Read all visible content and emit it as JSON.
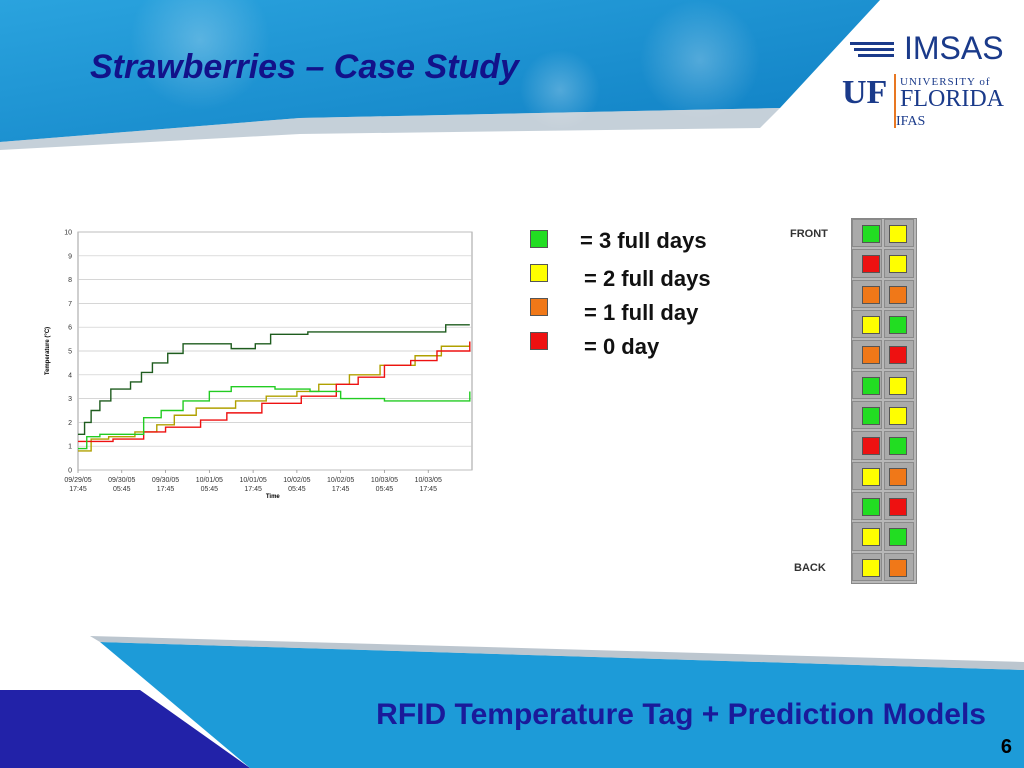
{
  "slide": {
    "title": "Strawberries – Case Study",
    "footer_title": "RFID Temperature Tag + Prediction Models",
    "page_number": "6"
  },
  "logo": {
    "imsas": "IMSAS",
    "uf": "UF",
    "university_of": "UNIVERSITY of",
    "florida": "FLORIDA",
    "ifas": "IFAS"
  },
  "legend": [
    {
      "label": "= 3 full days",
      "color": "#22dd22"
    },
    {
      "label": "= 2 full days",
      "color": "#ffff00"
    },
    {
      "label": "= 1 full day",
      "color": "#f07818"
    },
    {
      "label": "= 0 day",
      "color": "#ee1111"
    }
  ],
  "pallet_map": {
    "front_label": "FRONT",
    "back_label": "BACK",
    "rows": [
      [
        "#22dd22",
        "#ffff00"
      ],
      [
        "#ee1111",
        "#ffff00"
      ],
      [
        "#f07818",
        "#f07818"
      ],
      [
        "#ffff00",
        "#22dd22"
      ],
      [
        "#f07818",
        "#ee1111"
      ],
      [
        "#22dd22",
        "#ffff00"
      ],
      [
        "#22dd22",
        "#ffff00"
      ],
      [
        "#ee1111",
        "#22dd22"
      ],
      [
        "#ffff00",
        "#f07818"
      ],
      [
        "#22dd22",
        "#ee1111"
      ],
      [
        "#ffff00",
        "#22dd22"
      ],
      [
        "#ffff00",
        "#f07818"
      ]
    ]
  },
  "chart_data": {
    "type": "line",
    "title": "",
    "xlabel": "Time",
    "ylabel": "Temperature (°C)",
    "ylim": [
      0,
      10
    ],
    "yticks": [
      "0",
      "1",
      "2",
      "3",
      "4",
      "5",
      "6",
      "7",
      "8",
      "9",
      "10"
    ],
    "xticks": [
      "09/29/05 17:45",
      "09/30/05 05:45",
      "09/30/05 17:45",
      "10/01/05 05:45",
      "10/01/05 17:45",
      "10/02/05 05:45",
      "10/02/05 17:45",
      "10/03/05 05:45",
      "10/03/05 17:45"
    ],
    "xlim": [
      0,
      9
    ],
    "grid": true,
    "series": [
      {
        "color": "#1e5c1e",
        "x": [
          0,
          0.15,
          0.3,
          0.5,
          0.75,
          1.2,
          1.45,
          1.7,
          2.05,
          2.4,
          3.5,
          4.05,
          4.4,
          5.25,
          6.5,
          7.65,
          8.4,
          8.95
        ],
        "y": [
          1.5,
          2.0,
          2.5,
          2.9,
          3.4,
          3.7,
          4.1,
          4.5,
          4.9,
          5.3,
          5.1,
          5.3,
          5.7,
          5.8,
          5.8,
          5.8,
          6.1,
          6.1
        ]
      },
      {
        "color": "#b0a000",
        "x": [
          0,
          0.3,
          0.7,
          1.3,
          1.8,
          2.2,
          2.7,
          3.6,
          4.3,
          5.0,
          5.5,
          6.2,
          6.9,
          7.7,
          8.3,
          8.95
        ],
        "y": [
          0.8,
          1.3,
          1.4,
          1.6,
          1.9,
          2.3,
          2.6,
          2.9,
          3.1,
          3.3,
          3.6,
          4.0,
          4.4,
          4.8,
          5.2,
          5.4
        ]
      },
      {
        "color": "#ee1111",
        "x": [
          0,
          0.4,
          0.8,
          1.5,
          2.0,
          2.8,
          3.4,
          4.2,
          5.1,
          5.9,
          6.4,
          7.0,
          7.6,
          8.2,
          8.95
        ],
        "y": [
          1.2,
          1.2,
          1.3,
          1.6,
          1.8,
          2.1,
          2.4,
          2.8,
          3.1,
          3.6,
          3.9,
          4.4,
          4.6,
          5.0,
          5.4
        ]
      },
      {
        "color": "#22cc22",
        "x": [
          0,
          0.2,
          0.5,
          0.9,
          1.5,
          1.9,
          2.4,
          3.0,
          3.5,
          4.5,
          5.3,
          6.0,
          7.0,
          8.0,
          8.95
        ],
        "y": [
          0.9,
          1.4,
          1.5,
          1.5,
          2.2,
          2.5,
          2.9,
          3.3,
          3.5,
          3.4,
          3.3,
          3.0,
          2.9,
          2.9,
          3.3
        ]
      }
    ]
  }
}
